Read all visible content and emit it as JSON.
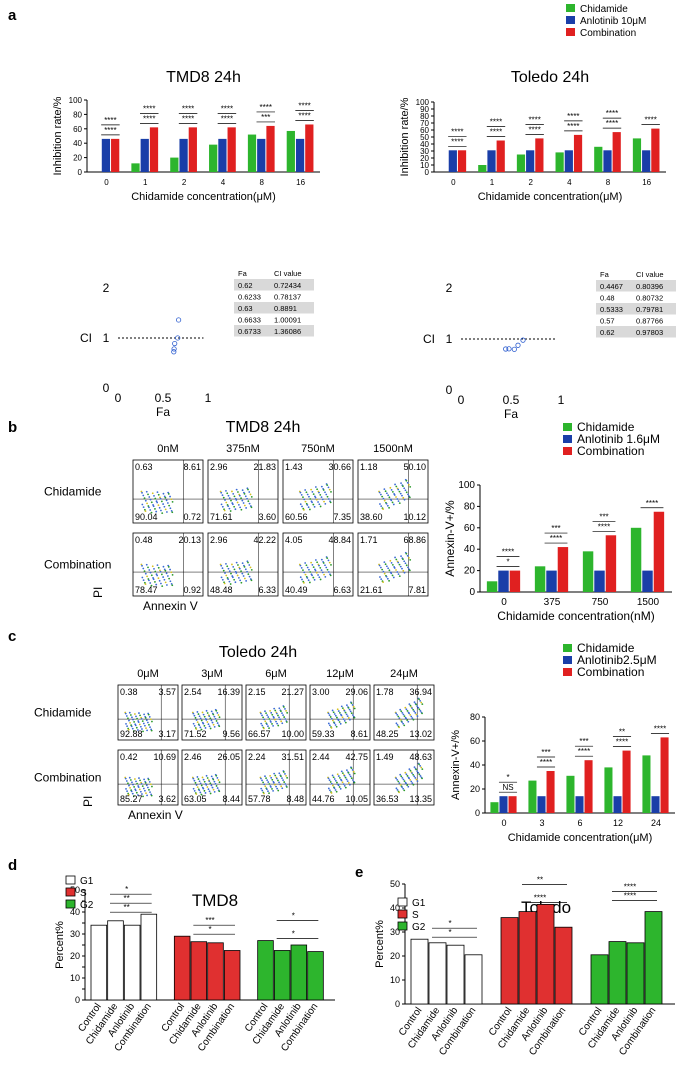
{
  "colors": {
    "chidamide": "#2db52d",
    "anlotinib": "#1a3ea8",
    "combination": "#e02020",
    "g1": "#ffffff",
    "s": "#e03030",
    "g2": "#2db52d",
    "axis": "#000000",
    "dot": "#2f5fd0"
  },
  "panel_a": {
    "letter": "a",
    "legend": [
      "Chidamide",
      "Anlotinib 10μM",
      "Combination"
    ],
    "chart_data": [
      {
        "type": "bar",
        "title": "TMD8 24h",
        "xlabel": "Chidamide concentration(μM)",
        "ylabel": "Inhibition rate/%",
        "ylim": [
          0,
          100
        ],
        "yticks": [
          0,
          20,
          40,
          60,
          80,
          100
        ],
        "categories": [
          "0",
          "1",
          "2",
          "4",
          "8",
          "16"
        ],
        "series": [
          {
            "name": "Chidamide",
            "values": [
              0,
              12,
              20,
              38,
              52,
              57
            ]
          },
          {
            "name": "Anlotinib 10μM",
            "values": [
              46,
              46,
              46,
              46,
              46,
              46
            ]
          },
          {
            "name": "Combination",
            "values": [
              46,
              62,
              62,
              62,
              64,
              66
            ]
          }
        ],
        "sig_labels": [
          "****",
          "****",
          "****",
          "****",
          "****",
          "****",
          "****",
          "****",
          "***",
          "****",
          "****",
          "****"
        ]
      },
      {
        "type": "bar",
        "title": "Toledo 24h",
        "xlabel": "Chidamide concentration(μM)",
        "ylabel": "Inhibition rate/%",
        "ylim": [
          0,
          100
        ],
        "yticks": [
          0,
          10,
          20,
          30,
          40,
          50,
          60,
          70,
          80,
          90,
          100
        ],
        "categories": [
          "0",
          "1",
          "2",
          "4",
          "8",
          "16"
        ],
        "series": [
          {
            "name": "Chidamide",
            "values": [
              0,
              10,
              25,
              28,
              36,
              48
            ]
          },
          {
            "name": "Anlotinib 10μM",
            "values": [
              31,
              31,
              31,
              31,
              31,
              31
            ]
          },
          {
            "name": "Combination",
            "values": [
              31,
              45,
              48,
              53,
              57,
              62
            ]
          }
        ],
        "sig_labels": [
          "****",
          "****",
          "****",
          "****",
          "****",
          "****",
          "****",
          "****",
          "****",
          "****",
          "****"
        ]
      }
    ],
    "ci_plots": [
      {
        "xlabel": "Fa",
        "ylabel": "CI",
        "ticks_y": [
          "2",
          "1",
          "0"
        ],
        "ticks_x": [
          "0",
          "0.5",
          "1"
        ],
        "points": [
          {
            "x": 0.62,
            "y": 0.72434
          },
          {
            "x": 0.6233,
            "y": 0.78137
          },
          {
            "x": 0.63,
            "y": 0.8891
          },
          {
            "x": 0.6633,
            "y": 1.00091
          },
          {
            "x": 0.6733,
            "y": 1.36086
          }
        ],
        "table": {
          "headers": [
            "Fa",
            "CI value"
          ],
          "rows": [
            [
              "0.62",
              "0.72434"
            ],
            [
              "0.6233",
              "0.78137"
            ],
            [
              "0.63",
              "0.8891"
            ],
            [
              "0.6633",
              "1.00091"
            ],
            [
              "0.6733",
              "1.36086"
            ]
          ]
        }
      },
      {
        "xlabel": "Fa",
        "ylabel": "CI",
        "ticks_y": [
          "2",
          "1",
          "0"
        ],
        "ticks_x": [
          "0",
          "0.5",
          "1"
        ],
        "points": [
          {
            "x": 0.4467,
            "y": 0.80396
          },
          {
            "x": 0.48,
            "y": 0.80732
          },
          {
            "x": 0.5333,
            "y": 0.79781
          },
          {
            "x": 0.57,
            "y": 0.87766
          },
          {
            "x": 0.62,
            "y": 0.97803
          }
        ],
        "table": {
          "headers": [
            "Fa",
            "CI value"
          ],
          "rows": [
            [
              "0.4467",
              "0.80396"
            ],
            [
              "0.48",
              "0.80732"
            ],
            [
              "0.5333",
              "0.79781"
            ],
            [
              "0.57",
              "0.87766"
            ],
            [
              "0.62",
              "0.97803"
            ]
          ]
        }
      }
    ]
  },
  "panel_b": {
    "letter": "b",
    "title": "TMD8 24h",
    "concentrations": [
      "0nM",
      "375nM",
      "750nM",
      "1500nM"
    ],
    "row_labels": [
      "Chidamide",
      "Combination"
    ],
    "flow_values": [
      [
        [
          "0.63",
          "8.61",
          "90.04",
          "0.72"
        ],
        [
          "2.96",
          "21.83",
          "71.61",
          "3.60"
        ],
        [
          "1.43",
          "30.66",
          "60.56",
          "7.35"
        ],
        [
          "1.18",
          "50.10",
          "38.60",
          "10.12"
        ]
      ],
      [
        [
          "0.48",
          "20.13",
          "78.47",
          "0.92"
        ],
        [
          "2.96",
          "42.22",
          "48.48",
          "6.33"
        ],
        [
          "4.05",
          "48.84",
          "40.49",
          "6.63"
        ],
        [
          "1.71",
          "68.86",
          "21.61",
          "7.81"
        ]
      ]
    ],
    "pi_label": "PI",
    "annexin_label": "Annexin V",
    "legend": [
      "Chidamide",
      "Anlotinib 1.6μM",
      "Combination"
    ],
    "chart_data": {
      "type": "bar",
      "xlabel": "Chidamide concentration(nM)",
      "ylabel": "Annexin-V+/%",
      "ylim": [
        0,
        100
      ],
      "yticks": [
        0,
        20,
        40,
        60,
        80,
        100
      ],
      "categories": [
        "0",
        "375",
        "750",
        "1500"
      ],
      "series": [
        {
          "name": "Chidamide",
          "values": [
            10,
            24,
            38,
            60
          ]
        },
        {
          "name": "Anlotinib 1.6μM",
          "values": [
            20,
            20,
            20,
            20
          ]
        },
        {
          "name": "Combination",
          "values": [
            20,
            42,
            53,
            75
          ]
        }
      ],
      "sig_labels": [
        "*",
        "****",
        "****",
        "***",
        "****",
        "***",
        "****"
      ]
    }
  },
  "panel_c": {
    "letter": "c",
    "title": "Toledo 24h",
    "concentrations": [
      "0μM",
      "3μM",
      "6μM",
      "12μM",
      "24μM"
    ],
    "row_labels": [
      "Chidamide",
      "Combination"
    ],
    "flow_values": [
      [
        [
          "0.38",
          "3.57",
          "92.88",
          "3.17"
        ],
        [
          "2.54",
          "16.39",
          "71.52",
          "9.56"
        ],
        [
          "2.15",
          "21.27",
          "66.57",
          "10.00"
        ],
        [
          "3.00",
          "29.06",
          "59.33",
          "8.61"
        ],
        [
          "1.78",
          "36.94",
          "48.25",
          "13.02"
        ]
      ],
      [
        [
          "0.42",
          "10.69",
          "85.27",
          "3.62"
        ],
        [
          "2.46",
          "26.05",
          "63.05",
          "8.44"
        ],
        [
          "2.24",
          "31.51",
          "57.78",
          "8.48"
        ],
        [
          "2.44",
          "42.75",
          "44.76",
          "10.05"
        ],
        [
          "1.49",
          "48.63",
          "36.53",
          "13.35"
        ]
      ]
    ],
    "pi_label": "PI",
    "annexin_label": "Annexin V",
    "legend": [
      "Chidamide",
      "Anlotinib2.5μM",
      "Combination"
    ],
    "chart_data": {
      "type": "bar",
      "xlabel": "Chidamide concentration(μM)",
      "ylabel": "Annexin-V+/%",
      "ylim": [
        0,
        80
      ],
      "yticks": [
        0,
        20,
        40,
        60,
        80
      ],
      "categories": [
        "0",
        "3",
        "6",
        "12",
        "24"
      ],
      "series": [
        {
          "name": "Chidamide",
          "values": [
            9,
            27,
            31,
            38,
            48
          ]
        },
        {
          "name": "Anlotinib2.5μM",
          "values": [
            14,
            14,
            14,
            14,
            14
          ]
        },
        {
          "name": "Combination",
          "values": [
            14,
            35,
            44,
            52,
            63
          ]
        }
      ],
      "sig_labels": [
        "NS",
        "*",
        "****",
        "***",
        "****",
        "***",
        "****",
        "**",
        "****"
      ]
    }
  },
  "panel_d": {
    "letter": "d",
    "chart_data": {
      "type": "bar",
      "title": "TMD8",
      "ylabel": "Percent%",
      "ylim": [
        0,
        50
      ],
      "yticks": [
        0,
        5,
        10,
        15,
        20,
        25,
        30,
        35,
        40,
        45,
        50
      ],
      "groups": [
        "G1",
        "S",
        "G2"
      ],
      "categories": [
        "Control",
        "Chidamide",
        "Anlotinib",
        "Combination"
      ],
      "series": [
        {
          "name": "G1",
          "values": [
            34,
            36,
            34,
            39
          ]
        },
        {
          "name": "S",
          "values": [
            29,
            26.5,
            26,
            22.5
          ]
        },
        {
          "name": "G2",
          "values": [
            27,
            22.5,
            25,
            22
          ]
        }
      ],
      "sig_labels": [
        "**",
        "**",
        "*",
        "*",
        "***",
        "*",
        "*"
      ]
    }
  },
  "panel_e": {
    "letter": "e",
    "chart_data": {
      "type": "bar",
      "title": "Toledo",
      "ylabel": "Percent%",
      "ylim": [
        0,
        50
      ],
      "groups": [
        "G1",
        "S",
        "G2"
      ],
      "categories": [
        "Control",
        "Chidamide",
        "Anlotinib",
        "Combination"
      ],
      "series": [
        {
          "name": "G1",
          "values": [
            27,
            25.5,
            24.5,
            20.5
          ]
        },
        {
          "name": "S",
          "values": [
            36,
            38.5,
            41.5,
            32
          ]
        },
        {
          "name": "G2",
          "values": [
            20.5,
            26,
            25.5,
            38.5
          ]
        }
      ],
      "sig_labels": [
        "*",
        "*",
        "**",
        "****",
        "****",
        "****"
      ]
    }
  }
}
